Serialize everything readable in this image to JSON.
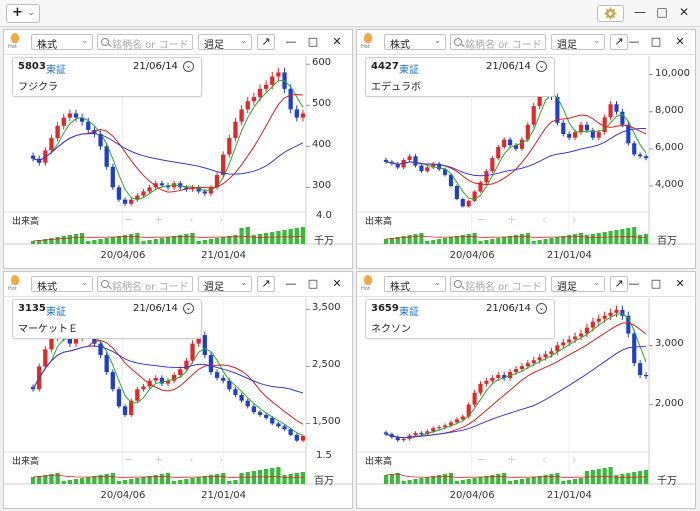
{
  "toolbar": {
    "add_label": "+",
    "add_chevron": "⌄",
    "gear_icon": "gear-icon"
  },
  "window": {
    "minimize": "—",
    "restore": "□",
    "close": "✕"
  },
  "common": {
    "hot_label": "Hot",
    "market_select": "株式",
    "search_placeholder": "銘柄名 or コード",
    "period_select": "週足",
    "popout": "↗",
    "volume_label": "出来高",
    "x_ticks": [
      "20/04/06",
      "21/01/04"
    ]
  },
  "panels": [
    {
      "code": "5803",
      "market": "東証",
      "date": "21/06/14",
      "name": "フジクラ",
      "y_ticks": [
        "600",
        "500",
        "400",
        "300"
      ],
      "vol_max": "4.0",
      "vol_unit": "千万"
    },
    {
      "code": "4427",
      "market": "東証",
      "date": "21/06/14",
      "name": "エデュラボ",
      "y_ticks": [
        "10,000",
        "8,000",
        "6,000",
        "4,000"
      ],
      "vol_max": "",
      "vol_unit": "百万"
    },
    {
      "code": "3135",
      "market": "東証",
      "date": "21/06/14",
      "name": "マーケットＥ",
      "y_ticks": [
        "3,500",
        "2,500",
        "1,500"
      ],
      "vol_max": "1.5",
      "vol_unit": "百万"
    },
    {
      "code": "3659",
      "market": "東証",
      "date": "21/06/14",
      "name": "ネクソン",
      "y_ticks": [
        "3,000",
        "2,000"
      ],
      "vol_max": "",
      "vol_unit": "千万"
    }
  ],
  "colors": {
    "up": "#e0282a",
    "down": "#1f3fc8",
    "ma_short": "#2ea82e",
    "ma_mid": "#d92020",
    "ma_long": "#3a3ad0",
    "volume": "#3cb83c"
  },
  "chart_data": [
    {
      "type": "candlestick",
      "name": "5803 フジクラ",
      "ylim": [
        240,
        620
      ],
      "closes": [
        370,
        360,
        390,
        420,
        450,
        470,
        480,
        470,
        460,
        440,
        430,
        400,
        350,
        300,
        270,
        260,
        270,
        280,
        290,
        300,
        310,
        305,
        300,
        310,
        300,
        295,
        300,
        290,
        285,
        300,
        330,
        380,
        420,
        460,
        490,
        510,
        520,
        540,
        550,
        570,
        580,
        540,
        490,
        470,
        480
      ]
    },
    {
      "type": "candlestick",
      "name": "4427 エデュラボ",
      "ylim": [
        2600,
        11000
      ],
      "closes": [
        5300,
        5200,
        5000,
        5400,
        5600,
        5100,
        4800,
        5000,
        5200,
        4900,
        4600,
        4000,
        3300,
        2900,
        3200,
        3700,
        4200,
        4800,
        5500,
        6100,
        6500,
        6200,
        6000,
        6500,
        7300,
        8300,
        9200,
        9600,
        8800,
        7400,
        6800,
        6600,
        6900,
        7300,
        7000,
        6600,
        6900,
        7700,
        8400,
        8000,
        7300,
        6300,
        5700,
        5600,
        5500
      ]
    },
    {
      "type": "candlestick",
      "name": "3135 マーケットＥ",
      "ylim": [
        1000,
        3700
      ],
      "closes": [
        2100,
        2500,
        2800,
        3000,
        3100,
        3000,
        2900,
        3000,
        3100,
        3050,
        2900,
        2700,
        2400,
        2100,
        1800,
        1650,
        1900,
        2100,
        2150,
        2250,
        2300,
        2200,
        2250,
        2350,
        2450,
        2600,
        2900,
        3050,
        2700,
        2400,
        2300,
        2250,
        2100,
        2000,
        1900,
        1800,
        1700,
        1650,
        1600,
        1500,
        1450,
        1400,
        1300,
        1200,
        1280
      ]
    },
    {
      "type": "candlestick",
      "name": "3659 ネクソン",
      "ylim": [
        1200,
        3800
      ],
      "closes": [
        1500,
        1450,
        1400,
        1420,
        1480,
        1520,
        1500,
        1550,
        1600,
        1620,
        1650,
        1700,
        1750,
        1800,
        2000,
        2200,
        2350,
        2400,
        2450,
        2500,
        2450,
        2550,
        2600,
        2650,
        2700,
        2750,
        2800,
        2850,
        2900,
        3000,
        3050,
        3100,
        3150,
        3200,
        3300,
        3400,
        3450,
        3500,
        3550,
        3600,
        3500,
        3200,
        2700,
        2500,
        2480
      ]
    }
  ]
}
